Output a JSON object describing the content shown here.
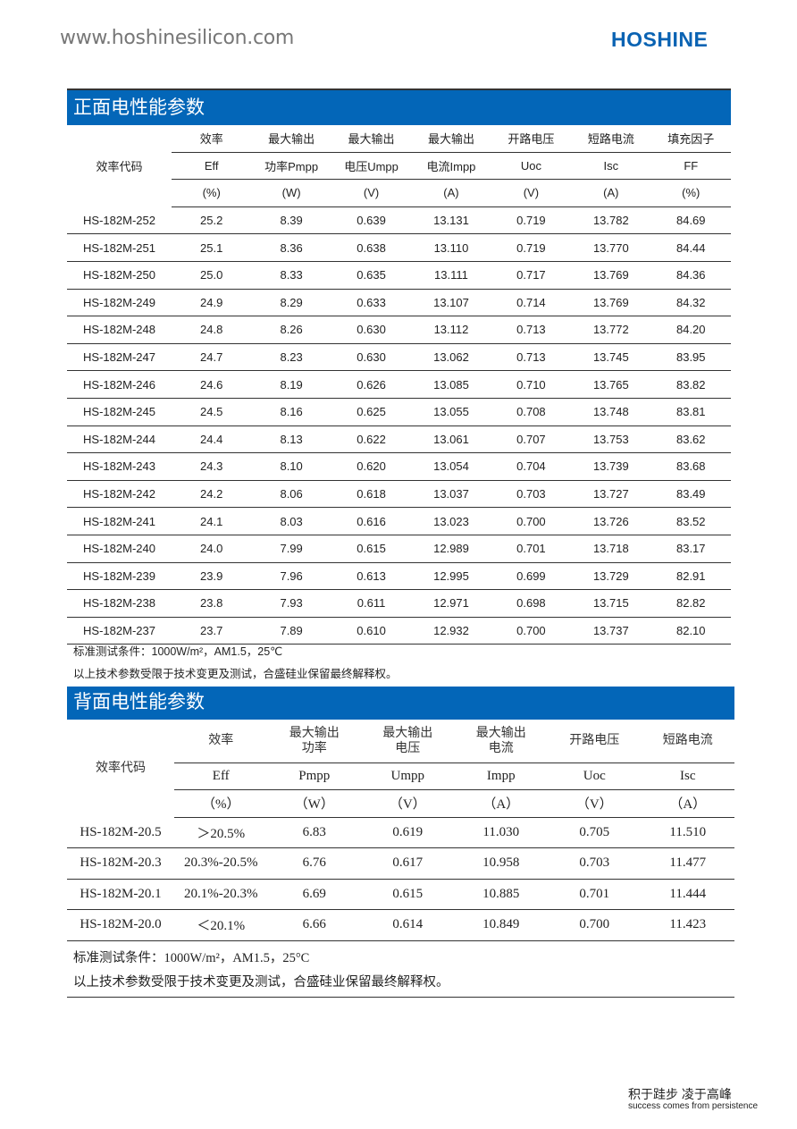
{
  "header": {
    "website": "www.hoshinesilicon.com",
    "logo": "HOSHINE",
    "logo_color": "#0a63b3"
  },
  "accent_color": "#0366b8",
  "front": {
    "title": "正面电性能参数",
    "code_header": "效率代码",
    "header_row1": [
      "效率",
      "最大输出",
      "最大输出",
      "最大输出",
      "开路电压",
      "短路电流",
      "填充因子"
    ],
    "header_row2": [
      "Eff",
      "功率Pmpp",
      "电压Umpp",
      "电流Impp",
      "Uoc",
      "Isc",
      "FF"
    ],
    "header_row3": [
      "(%)",
      "(W)",
      "(V)",
      "(A)",
      "(V)",
      "(A)",
      "(%)"
    ],
    "rows": [
      [
        "HS-182M-252",
        "25.2",
        "8.39",
        "0.639",
        "13.131",
        "0.719",
        "13.782",
        "84.69"
      ],
      [
        "HS-182M-251",
        "25.1",
        "8.36",
        "0.638",
        "13.110",
        "0.719",
        "13.770",
        "84.44"
      ],
      [
        "HS-182M-250",
        "25.0",
        "8.33",
        "0.635",
        "13.111",
        "0.717",
        "13.769",
        "84.36"
      ],
      [
        "HS-182M-249",
        "24.9",
        "8.29",
        "0.633",
        "13.107",
        "0.714",
        "13.769",
        "84.32"
      ],
      [
        "HS-182M-248",
        "24.8",
        "8.26",
        "0.630",
        "13.112",
        "0.713",
        "13.772",
        "84.20"
      ],
      [
        "HS-182M-247",
        "24.7",
        "8.23",
        "0.630",
        "13.062",
        "0.713",
        "13.745",
        "83.95"
      ],
      [
        "HS-182M-246",
        "24.6",
        "8.19",
        "0.626",
        "13.085",
        "0.710",
        "13.765",
        "83.82"
      ],
      [
        "HS-182M-245",
        "24.5",
        "8.16",
        "0.625",
        "13.055",
        "0.708",
        "13.748",
        "83.81"
      ],
      [
        "HS-182M-244",
        "24.4",
        "8.13",
        "0.622",
        "13.061",
        "0.707",
        "13.753",
        "83.62"
      ],
      [
        "HS-182M-243",
        "24.3",
        "8.10",
        "0.620",
        "13.054",
        "0.704",
        "13.739",
        "83.68"
      ],
      [
        "HS-182M-242",
        "24.2",
        "8.06",
        "0.618",
        "13.037",
        "0.703",
        "13.727",
        "83.49"
      ],
      [
        "HS-182M-241",
        "24.1",
        "8.03",
        "0.616",
        "13.023",
        "0.700",
        "13.726",
        "83.52"
      ],
      [
        "HS-182M-240",
        "24.0",
        "7.99",
        "0.615",
        "12.989",
        "0.701",
        "13.718",
        "83.17"
      ],
      [
        "HS-182M-239",
        "23.9",
        "7.96",
        "0.613",
        "12.995",
        "0.699",
        "13.729",
        "82.91"
      ],
      [
        "HS-182M-238",
        "23.8",
        "7.93",
        "0.611",
        "12.971",
        "0.698",
        "13.715",
        "82.82"
      ],
      [
        "HS-182M-237",
        "23.7",
        "7.89",
        "0.610",
        "12.932",
        "0.700",
        "13.737",
        "82.10"
      ]
    ],
    "note_conditions": "标准测试条件：1000W/m²，AM1.5，25℃",
    "note_rights": "以上技术参数受限于技术变更及测试，合盛硅业保留最终解释权。"
  },
  "back": {
    "title": "背面电性能参数",
    "code_header": "效率代码",
    "header_row1": [
      "效率",
      "最大输出\n功率",
      "最大输出\n电压",
      "最大输出\n电流",
      "开路电压",
      "短路电流"
    ],
    "header_row2": [
      "Eff",
      "Pmpp",
      "Umpp",
      "Impp",
      "Uoc",
      "Isc"
    ],
    "header_row3": [
      "（%）",
      "（W）",
      "（V）",
      "（A）",
      "（V）",
      "（A）"
    ],
    "rows": [
      [
        "HS-182M-20.5",
        "＞20.5%",
        "6.83",
        "0.619",
        "11.030",
        "0.705",
        "11.510"
      ],
      [
        "HS-182M-20.3",
        "20.3%-20.5%",
        "6.76",
        "0.617",
        "10.958",
        "0.703",
        "11.477"
      ],
      [
        "HS-182M-20.1",
        "20.1%-20.3%",
        "6.69",
        "0.615",
        "10.885",
        "0.701",
        "11.444"
      ],
      [
        "HS-182M-20.0",
        "＜20.1%",
        "6.66",
        "0.614",
        "10.849",
        "0.700",
        "11.423"
      ]
    ],
    "note_conditions": "标准测试条件：1000W/m²，AM1.5，25°C",
    "note_rights": "以上技术参数受限于技术变更及测试，合盛硅业保留最终解释权。"
  },
  "footer": {
    "slogan": "积于跬步  凌于高峰",
    "slogan_en": "success comes from persistence"
  }
}
